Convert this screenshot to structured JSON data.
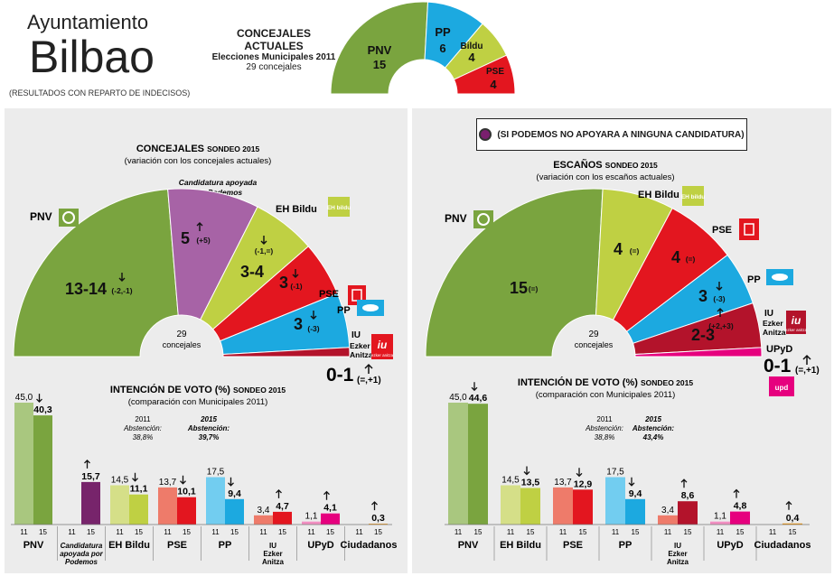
{
  "header": {
    "title_small": "Ayuntamiento",
    "title_big": "Bilbao",
    "note": "(RESULTADOS CON REPARTO DE INDECISOS)"
  },
  "top": {
    "title": "CONCEJALES ACTUALES",
    "subtitle": "Elecciones Municipales 2011",
    "total": "29 concejales"
  },
  "left_panel": {
    "seats_title": "CONCEJALES",
    "seats_title_suffix": "SONDEO 2015",
    "seats_subtitle": "(variación con los concejales actuales)",
    "center_count": "29",
    "center_label": "concejales",
    "podemos_note_line1": "Candidatura apoyada",
    "podemos_note_line2": "por Podemos",
    "vote_title": "INTENCIÓN DE VOTO (%)",
    "vote_title_suffix": "SONDEO 2015",
    "vote_subtitle": "(comparación con Municipales 2011)",
    "abst_year_2011": "2011",
    "abst_label_2011": "Abstención:",
    "abst_value_2011": "38,8%",
    "abst_year_2015": "2015",
    "abst_label_2015": "Abstención:",
    "abst_value_2015": "39,7%"
  },
  "right_panel": {
    "box_note": "(SI PODEMOS NO APOYARA A NINGUNA CANDIDATURA)",
    "seats_title": "ESCAÑOS",
    "seats_title_suffix": "SONDEO 2015",
    "seats_subtitle": "(variación con los escaños actuales)",
    "center_count": "29",
    "center_label": "concejales",
    "vote_title": "INTENCIÓN DE VOTO (%)",
    "vote_title_suffix": "SONDEO 2015",
    "vote_subtitle": "(comparación con Municipales 2011)",
    "abst_year_2011": "2011",
    "abst_label_2011": "Abstención:",
    "abst_value_2011": "38,8%",
    "abst_year_2015": "2015",
    "abst_label_2015": "Abstención:",
    "abst_value_2015": "43,4%"
  },
  "chart_data": [
    {
      "type": "pie",
      "title": "CONCEJALES ACTUALES",
      "subtitle": "Elecciones Municipales 2011",
      "slices": [
        {
          "name": "PNV",
          "seats": 15,
          "color": "#7aa43f"
        },
        {
          "name": "PP",
          "seats": 6,
          "color": "#1ca9e0"
        },
        {
          "name": "Bildu",
          "seats": 4,
          "color": "#bfd043"
        },
        {
          "name": "PSE",
          "seats": 4,
          "color": "#e3161f"
        }
      ]
    },
    {
      "type": "pie",
      "title": "CONCEJALES SONDEO 2015",
      "slices": [
        {
          "name": "PNV",
          "label": "13-14",
          "change": "(-2,-1)",
          "arrow": "down",
          "seats": 13.5,
          "color": "#7aa43f"
        },
        {
          "name": "Candidatura apoyada por Podemos",
          "label": "5",
          "change": "(+5)",
          "arrow": "up",
          "seats": 5,
          "color": "#a763a6"
        },
        {
          "name": "EH Bildu",
          "label": "3-4",
          "change": "(-1,=)",
          "arrow": "down",
          "seats": 3.5,
          "color": "#bfd043"
        },
        {
          "name": "PSE",
          "label": "3",
          "change": "(-1)",
          "arrow": "down",
          "seats": 3,
          "color": "#e3161f"
        },
        {
          "name": "PP",
          "label": "3",
          "change": "(-3)",
          "arrow": "down",
          "seats": 3,
          "color": "#1ca9e0"
        },
        {
          "name": "IU Ezker Anitza",
          "label": "0-1",
          "change": "(=,+1)",
          "arrow": "up",
          "seats": 0.5,
          "color": "#b3132b"
        }
      ]
    },
    {
      "type": "pie",
      "title": "ESCAÑOS SONDEO 2015",
      "slices": [
        {
          "name": "PNV",
          "label": "15",
          "change": "(=)",
          "arrow": "",
          "seats": 15,
          "color": "#7aa43f"
        },
        {
          "name": "EH Bildu",
          "label": "4",
          "change": "(=)",
          "arrow": "",
          "seats": 4,
          "color": "#bfd043"
        },
        {
          "name": "PSE",
          "label": "4",
          "change": "(=)",
          "arrow": "",
          "seats": 4,
          "color": "#e3161f"
        },
        {
          "name": "PP",
          "label": "3",
          "change": "(-3)",
          "arrow": "down",
          "seats": 3,
          "color": "#1ca9e0"
        },
        {
          "name": "IU Ezker Anitza",
          "label": "2-3",
          "change": "(+2,+3)",
          "arrow": "up",
          "seats": 2.5,
          "color": "#b3132b"
        },
        {
          "name": "UPyD",
          "label": "0-1",
          "change": "(=,+1)",
          "arrow": "up",
          "seats": 0.5,
          "color": "#e6007e"
        }
      ]
    },
    {
      "type": "bar",
      "title": "INTENCIÓN DE VOTO (%) SONDEO 2015",
      "subtitle": "(comparación con Municipales 2011)",
      "categories": [
        "PNV",
        "Candidatura apoyada por Podemos",
        "EH Bildu",
        "PSE",
        "PP",
        "IU Ezker Anitza",
        "UPyD",
        "Ciudadanos"
      ],
      "series": [
        {
          "name": "11",
          "values": [
            45.0,
            null,
            14.5,
            13.7,
            17.5,
            3.4,
            1.1,
            null
          ],
          "labels": [
            "45,0",
            "",
            "14,5",
            "13,7",
            "17,5",
            "3,4",
            "1,1",
            ""
          ]
        },
        {
          "name": "15",
          "values": [
            40.3,
            15.7,
            11.1,
            10.1,
            9.4,
            4.7,
            4.1,
            0.3
          ],
          "labels": [
            "40,3",
            "15,7",
            "11,1",
            "10,1",
            "9,4",
            "4,7",
            "4,1",
            "0,3"
          ],
          "arrows": [
            "down",
            "up",
            "down",
            "down",
            "down",
            "up",
            "up",
            "up"
          ]
        }
      ],
      "colors_11": [
        "#a9c77f",
        "",
        "#d5df88",
        "#ee7b6a",
        "#72cdf0",
        "#ee7b6a",
        "#f28fc2",
        ""
      ],
      "colors_15": [
        "#7aa43f",
        "#77246b",
        "#bfd043",
        "#e3161f",
        "#1ca9e0",
        "#e3161f",
        "#e6007e",
        "#f39200"
      ],
      "ylim": [
        0,
        45
      ]
    },
    {
      "type": "bar",
      "title": "INTENCIÓN DE VOTO (%) SONDEO 2015",
      "subtitle": "(comparación con Municipales 2011)",
      "categories": [
        "PNV",
        "EH Bildu",
        "PSE",
        "PP",
        "IU Ezker Anitza",
        "UPyD",
        "Ciudadanos"
      ],
      "series": [
        {
          "name": "11",
          "values": [
            45.0,
            14.5,
            13.7,
            17.5,
            3.4,
            1.1,
            null
          ],
          "labels": [
            "45,0",
            "14,5",
            "13,7",
            "17,5",
            "3,4",
            "1,1",
            ""
          ]
        },
        {
          "name": "15",
          "values": [
            44.6,
            13.5,
            12.9,
            9.4,
            8.6,
            4.8,
            0.4
          ],
          "labels": [
            "44,6",
            "13,5",
            "12,9",
            "9,4",
            "8,6",
            "4,8",
            "0,4"
          ],
          "arrows": [
            "down",
            "down",
            "down",
            "down",
            "up",
            "up",
            "up"
          ]
        }
      ],
      "colors_11": [
        "#a9c77f",
        "#d5df88",
        "#ee7b6a",
        "#72cdf0",
        "#ee7b6a",
        "#f28fc2",
        ""
      ],
      "colors_15": [
        "#7aa43f",
        "#bfd043",
        "#e3161f",
        "#1ca9e0",
        "#b3132b",
        "#e6007e",
        "#f39200"
      ],
      "ylim": [
        0,
        45
      ]
    }
  ],
  "bar_axis_labels": {
    "y11": "11",
    "y15": "15"
  },
  "category_display": {
    "left": [
      "PNV",
      "Candidatura|apoyada por|Podemos",
      "EH Bildu",
      "PSE",
      "PP",
      "IU|Ezker|Anitza",
      "UPyD",
      "Ciudadanos"
    ],
    "right": [
      "PNV",
      "EH Bildu",
      "PSE",
      "PP",
      "IU|Ezker|Anitza",
      "UPyD",
      "Ciudadanos"
    ]
  },
  "party_labels_left": {
    "pnv": "PNV",
    "ehbildu": "EH Bildu",
    "pse": "PSE",
    "pp": "PP",
    "iu_1": "IU",
    "iu_2": "Ezker",
    "iu_3": "Anitza"
  },
  "party_labels_right": {
    "pnv": "PNV",
    "ehbildu": "EH Bildu",
    "pse": "PSE",
    "pp": "PP",
    "iu_1": "IU",
    "iu_2": "Ezker",
    "iu_3": "Anitza",
    "upyd": "UPyD"
  },
  "logos": {
    "pnv": "pnv-logo",
    "bildu": "bildu-logo",
    "pse": "pse-logo",
    "pp": "pp-logo",
    "iu": "iu-logo",
    "upyd": "upyd-logo",
    "bildu_text": "EH bildu",
    "iu_text": "ezker anitza",
    "upyd_text": "upd"
  }
}
